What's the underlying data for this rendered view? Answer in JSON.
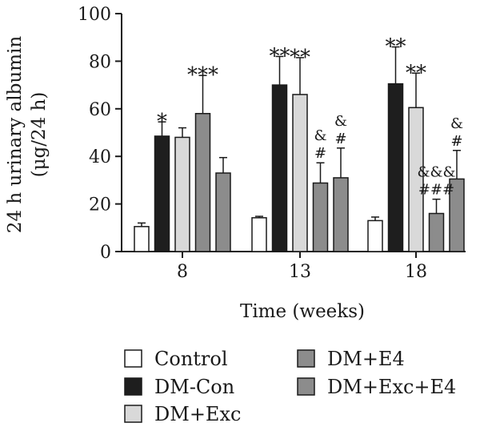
{
  "chart_data": {
    "type": "bar",
    "categories": [
      "8",
      "13",
      "18"
    ],
    "xlabel": "Time (weeks)",
    "ylabel_line1": "24 h urinary albumin",
    "ylabel_line2": "(μg/24 h)",
    "ylim": [
      0,
      100
    ],
    "yticks": [
      0,
      20,
      40,
      60,
      80,
      100
    ],
    "grid": false,
    "legend_position": "bottom",
    "series": [
      {
        "name": "Control",
        "color": "#ffffff",
        "values": [
          10.5,
          14.2,
          13.0
        ],
        "errors": [
          1.5,
          0.6,
          1.5
        ]
      },
      {
        "name": "DM-Con",
        "color": "#1e1e1e",
        "values": [
          48.5,
          70.0,
          70.5
        ],
        "errors": [
          6.0,
          12.0,
          15.5
        ]
      },
      {
        "name": "DM+Exc",
        "color": "#d9d9d9",
        "values": [
          48.0,
          66.0,
          60.5
        ],
        "errors": [
          4.0,
          15.5,
          14.5
        ]
      },
      {
        "name": "DM+E4",
        "color": "#8c8c8c",
        "values": [
          58.0,
          28.8,
          16.0
        ],
        "errors": [
          16.0,
          8.5,
          6.0
        ]
      },
      {
        "name": "DM+Exc+E4",
        "color": "#8c8c8c",
        "values": [
          33.0,
          31.0,
          30.5
        ],
        "errors": [
          6.5,
          12.5,
          12.0
        ]
      }
    ],
    "annotations": [
      {
        "category": 0,
        "series": 1,
        "lines": [
          "*"
        ]
      },
      {
        "category": 0,
        "series": 3,
        "lines": [
          "***"
        ]
      },
      {
        "category": 1,
        "series": 1,
        "lines": [
          "**"
        ]
      },
      {
        "category": 1,
        "series": 2,
        "lines": [
          "**"
        ]
      },
      {
        "category": 1,
        "series": 3,
        "lines": [
          "&",
          "#"
        ]
      },
      {
        "category": 1,
        "series": 4,
        "lines": [
          "&",
          "#"
        ]
      },
      {
        "category": 2,
        "series": 1,
        "lines": [
          "**"
        ]
      },
      {
        "category": 2,
        "series": 2,
        "lines": [
          "**"
        ]
      },
      {
        "category": 2,
        "series": 3,
        "lines": [
          "&&&",
          "###"
        ]
      },
      {
        "category": 2,
        "series": 4,
        "lines": [
          "&",
          "#"
        ]
      }
    ]
  }
}
